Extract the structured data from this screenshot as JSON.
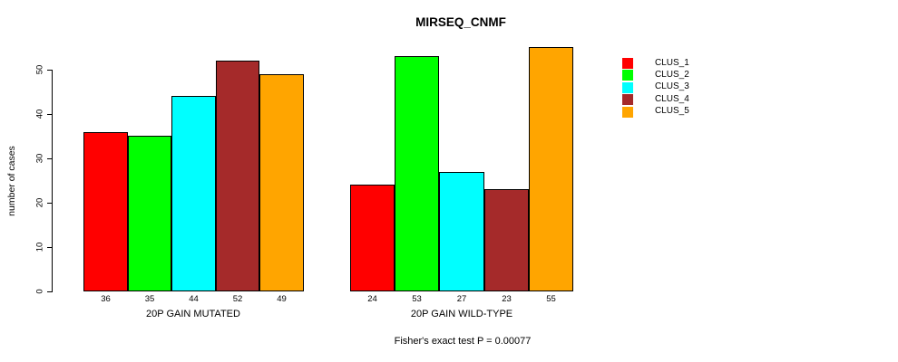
{
  "chart_data": {
    "type": "bar",
    "title": "MIRSEQ_CNMF",
    "ylabel": "number of cases",
    "yticks": [
      0,
      10,
      20,
      30,
      40,
      50
    ],
    "ylim": [
      0,
      55
    ],
    "grid": false,
    "legend_position": "right",
    "show_values_below_bars": true,
    "series": [
      {
        "name": "CLUS_1",
        "color": "#FF0000"
      },
      {
        "name": "CLUS_2",
        "color": "#00FF00"
      },
      {
        "name": "CLUS_3",
        "color": "#00FFFF"
      },
      {
        "name": "CLUS_4",
        "color": "#A52A2A"
      },
      {
        "name": "CLUS_5",
        "color": "#FFA500"
      }
    ],
    "panels": [
      {
        "xlabel": "20P GAIN MUTATED",
        "values": [
          36,
          35,
          44,
          52,
          49
        ]
      },
      {
        "xlabel": "20P GAIN WILD-TYPE",
        "values": [
          24,
          53,
          27,
          23,
          55
        ]
      }
    ],
    "annotation": "Fisher's exact test P = 0.00077",
    "bar_border_color": "#000000",
    "text_color": "#000000"
  }
}
